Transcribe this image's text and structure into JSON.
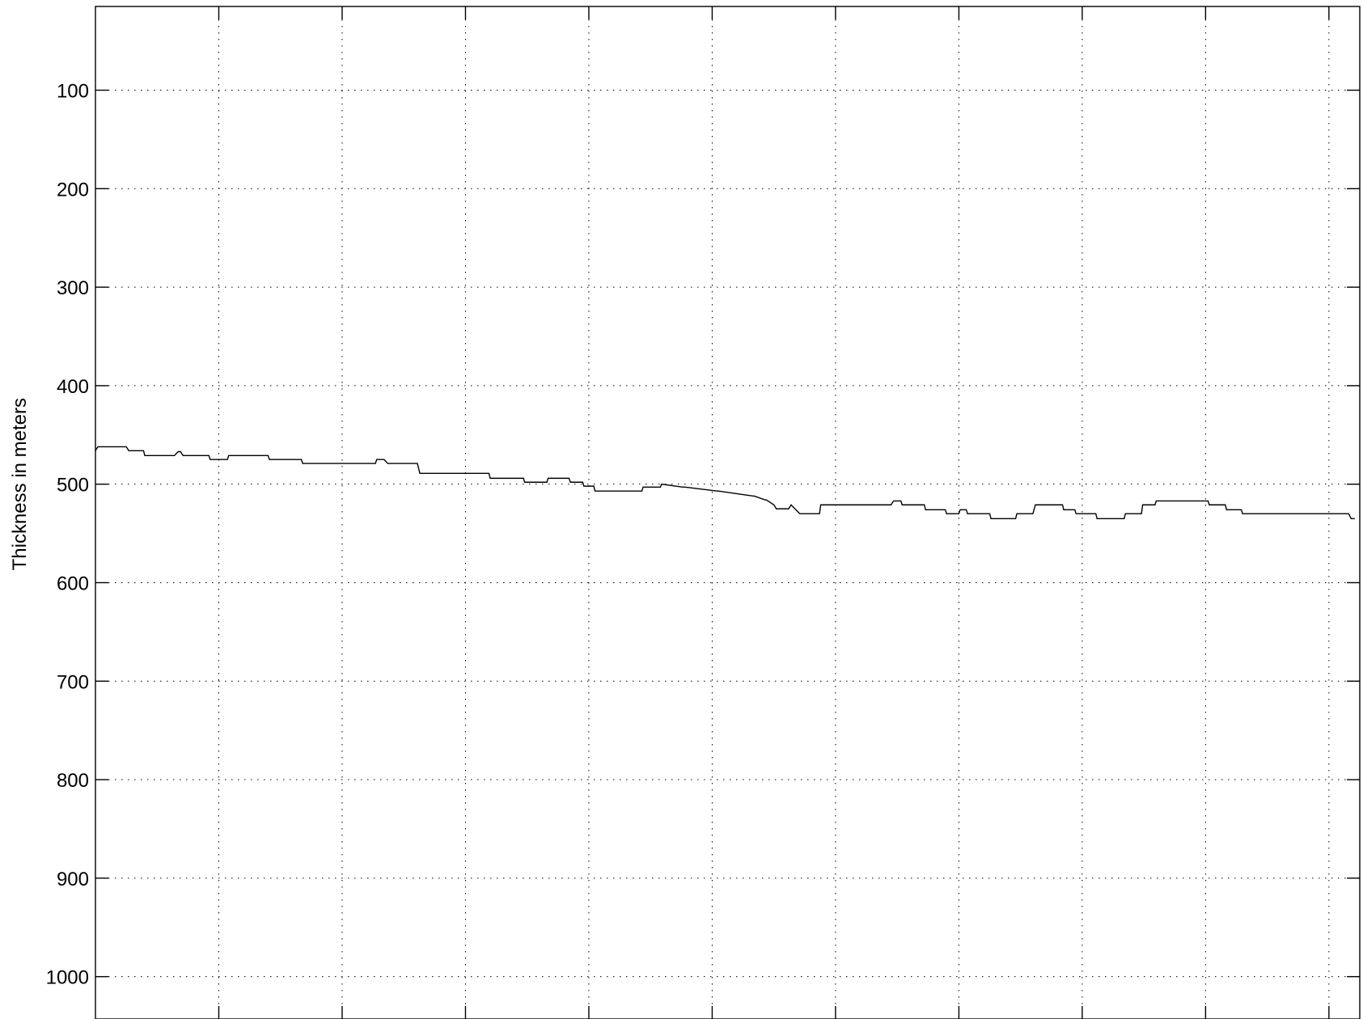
{
  "chart_data": {
    "type": "line",
    "title": "",
    "xlabel": "",
    "ylabel": "Thickness in meters",
    "y_reversed": true,
    "ylim": [
      15,
      1043
    ],
    "xlim": [
      0,
      10.25
    ],
    "yticks": [
      100,
      200,
      300,
      400,
      500,
      600,
      700,
      800,
      900,
      1000
    ],
    "ytick_labels": [
      "100",
      "200",
      "300",
      "400",
      "500",
      "600",
      "700",
      "800",
      "900",
      "1000"
    ],
    "xticks": [
      1,
      2,
      3,
      4,
      5,
      6,
      7,
      8,
      9,
      10
    ],
    "xtick_labels": [],
    "grid": true,
    "grid_style": "dotted",
    "line_color": "#000000",
    "series": [
      {
        "x": [
          0.0,
          0.02,
          0.03,
          0.25,
          0.27,
          0.39,
          0.4,
          0.64,
          0.67,
          0.69,
          0.71,
          0.92,
          0.93,
          1.07,
          1.08,
          1.4,
          1.41,
          1.67,
          1.68,
          2.27,
          2.28,
          2.34,
          2.37,
          2.61,
          2.62,
          2.63,
          3.19,
          3.2,
          3.47,
          3.48,
          3.66,
          3.67,
          3.84,
          3.85,
          3.95,
          3.96,
          4.04,
          4.05,
          4.43,
          4.44,
          4.58,
          4.59,
          4.76,
          4.78,
          5.04,
          5.05,
          5.33,
          5.34,
          5.43,
          5.44,
          5.5,
          5.52,
          5.62,
          5.64,
          5.71,
          5.73,
          5.87,
          5.88,
          6.45,
          6.47,
          6.53,
          6.54,
          6.72,
          6.73,
          6.89,
          6.9,
          7.0,
          7.01,
          7.06,
          7.07,
          7.25,
          7.26,
          7.46,
          7.47,
          7.6,
          7.62,
          7.84,
          7.85,
          7.94,
          7.95,
          8.11,
          8.12,
          8.34,
          8.35,
          8.48,
          8.49,
          8.59,
          8.6,
          8.79,
          8.8,
          9.02,
          9.03,
          9.16,
          9.17,
          9.29,
          9.3,
          10.14,
          10.16,
          10.18,
          10.21
        ],
        "y": [
          466,
          462,
          462,
          462,
          466,
          466,
          471,
          471,
          467,
          467,
          471,
          471,
          475,
          475,
          471,
          471,
          475,
          475,
          479,
          479,
          475,
          475,
          479,
          479,
          484,
          489,
          489,
          494,
          494,
          498,
          498,
          494,
          494,
          498,
          498,
          502,
          502,
          507,
          507,
          503,
          503,
          500,
          503,
          503,
          507,
          507,
          512,
          512,
          516,
          516,
          521,
          525,
          525,
          521,
          530,
          530,
          530,
          521,
          521,
          517,
          517,
          521,
          521,
          526,
          526,
          530,
          530,
          526,
          526,
          530,
          530,
          535,
          535,
          530,
          530,
          521,
          521,
          526,
          526,
          530,
          530,
          535,
          535,
          530,
          530,
          521,
          521,
          517,
          517,
          517,
          517,
          521,
          521,
          526,
          526,
          530,
          530,
          530,
          535,
          535
        ]
      }
    ]
  }
}
